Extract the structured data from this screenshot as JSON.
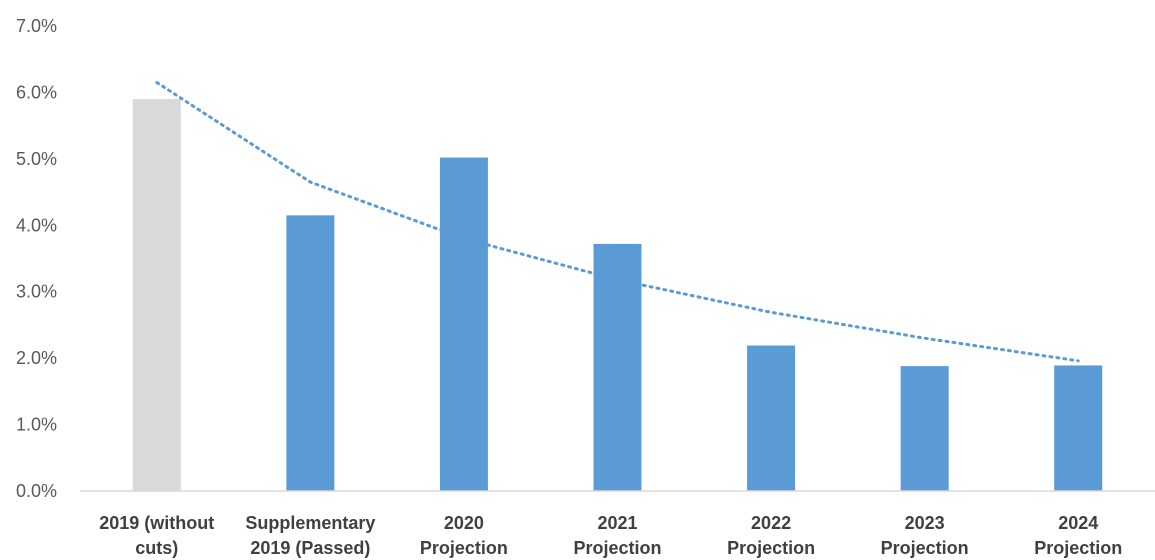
{
  "chart_data": {
    "type": "bar",
    "title": "",
    "xlabel": "",
    "ylabel": "",
    "ylim": [
      0,
      0.07
    ],
    "y_ticks": [
      "0.0%",
      "1.0%",
      "2.0%",
      "3.0%",
      "4.0%",
      "5.0%",
      "6.0%",
      "7.0%"
    ],
    "y_tick_values": [
      0,
      0.01,
      0.02,
      0.03,
      0.04,
      0.05,
      0.06,
      0.07
    ],
    "grid": false,
    "legend": "none",
    "categories": [
      [
        "2019 (without",
        "cuts)"
      ],
      [
        "Supplementary",
        "2019 (Passed)"
      ],
      [
        "2020",
        "Projection"
      ],
      [
        "2021",
        "Projection"
      ],
      [
        "2022",
        "Projection"
      ],
      [
        "2023",
        "Projection"
      ],
      [
        "2024",
        "Projection"
      ]
    ],
    "values": [
      0.059,
      0.0415,
      0.0502,
      0.0372,
      0.0219,
      0.0188,
      0.0189
    ],
    "bar_colors": [
      "#d9d9d9",
      "#5b9bd5",
      "#5b9bd5",
      "#5b9bd5",
      "#5b9bd5",
      "#5b9bd5",
      "#5b9bd5"
    ],
    "trendline": {
      "type": "logarithmic",
      "style": "dotted",
      "color": "#5b9bd5",
      "points": [
        0.0615,
        0.0465,
        0.038,
        0.0318,
        0.0269,
        0.023,
        0.0196
      ]
    },
    "axis_color": "#d9d9d9"
  }
}
